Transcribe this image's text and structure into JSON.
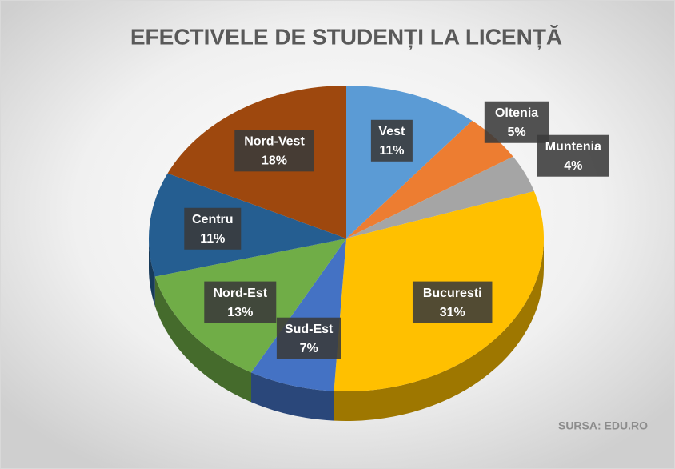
{
  "chart_data": {
    "type": "pie3d",
    "title": "EFECTIVELE DE STUDENȚI LA LICENȚĂ",
    "source": "SURSA: EDU.RO",
    "categories": [
      "Vest",
      "Oltenia",
      "Muntenia",
      "Bucuresti",
      "Sud-Est",
      "Nord-Est",
      "Centru",
      "Nord-Vest"
    ],
    "values": [
      11,
      5,
      4,
      31,
      7,
      13,
      11,
      18
    ],
    "value_labels": [
      "11%",
      "5%",
      "4%",
      "31%",
      "7%",
      "13%",
      "11%",
      "18%"
    ],
    "colors": [
      "#5b9bd5",
      "#ed7d31",
      "#a5a5a5",
      "#ffc000",
      "#4472c4",
      "#70ad47",
      "#255e91",
      "#9e480e"
    ]
  }
}
